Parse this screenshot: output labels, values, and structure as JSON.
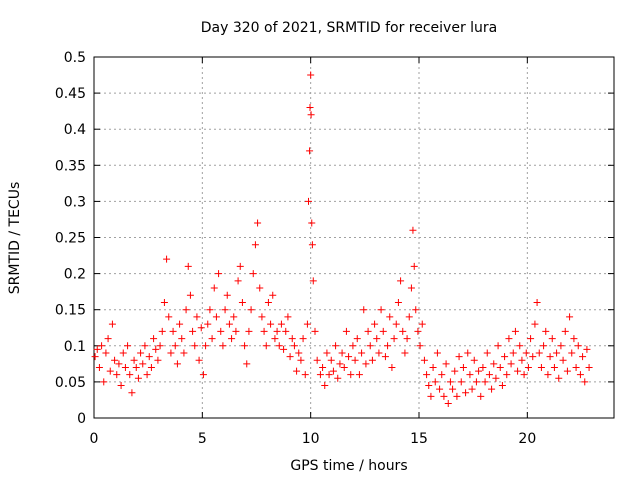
{
  "chart_data": {
    "type": "scatter",
    "title": "Day 320 of 2021, SRMTID for receiver lura",
    "xlabel": "GPS time / hours",
    "ylabel": "SRMTID / TECUs",
    "xlim": [
      0,
      24
    ],
    "ylim": [
      0,
      0.5
    ],
    "x_ticks": [
      0,
      5,
      10,
      15,
      20
    ],
    "x_tick_labels": [
      "0",
      "5",
      "10",
      "15",
      "20"
    ],
    "y_ticks": [
      0,
      0.05,
      0.1,
      0.15,
      0.2,
      0.25,
      0.3,
      0.35,
      0.4,
      0.45,
      0.5
    ],
    "y_tick_labels": [
      "0",
      "0.05",
      "0.1",
      "0.15",
      "0.2",
      "0.25",
      "0.3",
      "0.35",
      "0.4",
      "0.45",
      "0.5"
    ],
    "grid": true,
    "marker": "+",
    "color": "#ff0000",
    "series": [
      {
        "name": "SRMTID",
        "points": [
          [
            0.05,
            0.085
          ],
          [
            0.15,
            0.095
          ],
          [
            0.25,
            0.07
          ],
          [
            0.35,
            0.1
          ],
          [
            0.45,
            0.05
          ],
          [
            0.55,
            0.09
          ],
          [
            0.65,
            0.11
          ],
          [
            0.75,
            0.065
          ],
          [
            0.85,
            0.13
          ],
          [
            0.95,
            0.08
          ],
          [
            1.05,
            0.06
          ],
          [
            1.15,
            0.075
          ],
          [
            1.25,
            0.045
          ],
          [
            1.35,
            0.09
          ],
          [
            1.45,
            0.07
          ],
          [
            1.55,
            0.1
          ],
          [
            1.65,
            0.06
          ],
          [
            1.75,
            0.035
          ],
          [
            1.85,
            0.08
          ],
          [
            1.95,
            0.07
          ],
          [
            2.05,
            0.055
          ],
          [
            2.15,
            0.09
          ],
          [
            2.25,
            0.075
          ],
          [
            2.35,
            0.1
          ],
          [
            2.45,
            0.06
          ],
          [
            2.55,
            0.085
          ],
          [
            2.65,
            0.07
          ],
          [
            2.75,
            0.11
          ],
          [
            2.85,
            0.095
          ],
          [
            2.95,
            0.08
          ],
          [
            3.05,
            0.1
          ],
          [
            3.15,
            0.12
          ],
          [
            3.25,
            0.16
          ],
          [
            3.35,
            0.22
          ],
          [
            3.45,
            0.14
          ],
          [
            3.55,
            0.09
          ],
          [
            3.65,
            0.12
          ],
          [
            3.75,
            0.1
          ],
          [
            3.85,
            0.075
          ],
          [
            3.95,
            0.13
          ],
          [
            4.05,
            0.11
          ],
          [
            4.15,
            0.09
          ],
          [
            4.25,
            0.15
          ],
          [
            4.35,
            0.21
          ],
          [
            4.45,
            0.17
          ],
          [
            4.55,
            0.12
          ],
          [
            4.65,
            0.1
          ],
          [
            4.75,
            0.14
          ],
          [
            4.85,
            0.08
          ],
          [
            4.95,
            0.125
          ],
          [
            5.05,
            0.06
          ],
          [
            5.15,
            0.1
          ],
          [
            5.25,
            0.13
          ],
          [
            5.35,
            0.15
          ],
          [
            5.45,
            0.11
          ],
          [
            5.55,
            0.18
          ],
          [
            5.65,
            0.14
          ],
          [
            5.75,
            0.2
          ],
          [
            5.85,
            0.12
          ],
          [
            5.95,
            0.1
          ],
          [
            6.05,
            0.15
          ],
          [
            6.15,
            0.17
          ],
          [
            6.25,
            0.13
          ],
          [
            6.35,
            0.11
          ],
          [
            6.45,
            0.14
          ],
          [
            6.55,
            0.12
          ],
          [
            6.65,
            0.19
          ],
          [
            6.75,
            0.21
          ],
          [
            6.85,
            0.16
          ],
          [
            6.95,
            0.1
          ],
          [
            7.05,
            0.075
          ],
          [
            7.15,
            0.12
          ],
          [
            7.25,
            0.15
          ],
          [
            7.35,
            0.2
          ],
          [
            7.45,
            0.24
          ],
          [
            7.55,
            0.27
          ],
          [
            7.65,
            0.18
          ],
          [
            7.75,
            0.14
          ],
          [
            7.85,
            0.12
          ],
          [
            7.95,
            0.1
          ],
          [
            8.05,
            0.16
          ],
          [
            8.15,
            0.13
          ],
          [
            8.25,
            0.17
          ],
          [
            8.35,
            0.11
          ],
          [
            8.45,
            0.12
          ],
          [
            8.55,
            0.1
          ],
          [
            8.65,
            0.13
          ],
          [
            8.75,
            0.095
          ],
          [
            8.85,
            0.12
          ],
          [
            8.95,
            0.14
          ],
          [
            9.05,
            0.085
          ],
          [
            9.15,
            0.11
          ],
          [
            9.25,
            0.1
          ],
          [
            9.35,
            0.065
          ],
          [
            9.45,
            0.09
          ],
          [
            9.55,
            0.08
          ],
          [
            9.65,
            0.11
          ],
          [
            9.75,
            0.06
          ],
          [
            9.85,
            0.13
          ],
          [
            9.9,
            0.3
          ],
          [
            9.95,
            0.37
          ],
          [
            9.97,
            0.43
          ],
          [
            10.0,
            0.475
          ],
          [
            10.02,
            0.42
          ],
          [
            10.05,
            0.27
          ],
          [
            10.08,
            0.24
          ],
          [
            10.12,
            0.19
          ],
          [
            10.2,
            0.12
          ],
          [
            10.3,
            0.08
          ],
          [
            10.45,
            0.06
          ],
          [
            10.55,
            0.07
          ],
          [
            10.65,
            0.045
          ],
          [
            10.75,
            0.09
          ],
          [
            10.85,
            0.06
          ],
          [
            10.95,
            0.08
          ],
          [
            11.05,
            0.065
          ],
          [
            11.15,
            0.1
          ],
          [
            11.25,
            0.055
          ],
          [
            11.35,
            0.075
          ],
          [
            11.45,
            0.09
          ],
          [
            11.55,
            0.07
          ],
          [
            11.65,
            0.12
          ],
          [
            11.75,
            0.085
          ],
          [
            11.85,
            0.06
          ],
          [
            11.95,
            0.1
          ],
          [
            12.05,
            0.08
          ],
          [
            12.15,
            0.11
          ],
          [
            12.25,
            0.06
          ],
          [
            12.35,
            0.09
          ],
          [
            12.45,
            0.15
          ],
          [
            12.55,
            0.075
          ],
          [
            12.65,
            0.12
          ],
          [
            12.75,
            0.1
          ],
          [
            12.85,
            0.08
          ],
          [
            12.95,
            0.13
          ],
          [
            13.05,
            0.11
          ],
          [
            13.15,
            0.09
          ],
          [
            13.25,
            0.15
          ],
          [
            13.35,
            0.12
          ],
          [
            13.45,
            0.085
          ],
          [
            13.55,
            0.1
          ],
          [
            13.65,
            0.14
          ],
          [
            13.75,
            0.07
          ],
          [
            13.85,
            0.11
          ],
          [
            13.95,
            0.13
          ],
          [
            14.05,
            0.16
          ],
          [
            14.15,
            0.19
          ],
          [
            14.25,
            0.12
          ],
          [
            14.35,
            0.09
          ],
          [
            14.45,
            0.11
          ],
          [
            14.55,
            0.14
          ],
          [
            14.65,
            0.18
          ],
          [
            14.72,
            0.26
          ],
          [
            14.78,
            0.21
          ],
          [
            14.85,
            0.15
          ],
          [
            14.95,
            0.12
          ],
          [
            15.05,
            0.1
          ],
          [
            15.15,
            0.13
          ],
          [
            15.25,
            0.08
          ],
          [
            15.35,
            0.06
          ],
          [
            15.45,
            0.045
          ],
          [
            15.55,
            0.03
          ],
          [
            15.65,
            0.07
          ],
          [
            15.75,
            0.05
          ],
          [
            15.85,
            0.09
          ],
          [
            15.95,
            0.04
          ],
          [
            16.05,
            0.06
          ],
          [
            16.15,
            0.03
          ],
          [
            16.25,
            0.075
          ],
          [
            16.35,
            0.02
          ],
          [
            16.45,
            0.05
          ],
          [
            16.55,
            0.04
          ],
          [
            16.65,
            0.065
          ],
          [
            16.75,
            0.03
          ],
          [
            16.85,
            0.085
          ],
          [
            16.95,
            0.05
          ],
          [
            17.05,
            0.07
          ],
          [
            17.15,
            0.035
          ],
          [
            17.25,
            0.09
          ],
          [
            17.35,
            0.06
          ],
          [
            17.45,
            0.04
          ],
          [
            17.55,
            0.08
          ],
          [
            17.65,
            0.05
          ],
          [
            17.75,
            0.065
          ],
          [
            17.85,
            0.03
          ],
          [
            17.95,
            0.07
          ],
          [
            18.05,
            0.05
          ],
          [
            18.15,
            0.09
          ],
          [
            18.25,
            0.06
          ],
          [
            18.35,
            0.04
          ],
          [
            18.45,
            0.075
          ],
          [
            18.55,
            0.055
          ],
          [
            18.65,
            0.1
          ],
          [
            18.75,
            0.07
          ],
          [
            18.85,
            0.045
          ],
          [
            18.95,
            0.085
          ],
          [
            19.05,
            0.06
          ],
          [
            19.15,
            0.11
          ],
          [
            19.25,
            0.075
          ],
          [
            19.35,
            0.09
          ],
          [
            19.45,
            0.12
          ],
          [
            19.55,
            0.065
          ],
          [
            19.65,
            0.1
          ],
          [
            19.75,
            0.08
          ],
          [
            19.85,
            0.06
          ],
          [
            19.95,
            0.09
          ],
          [
            20.05,
            0.07
          ],
          [
            20.15,
            0.11
          ],
          [
            20.25,
            0.085
          ],
          [
            20.35,
            0.13
          ],
          [
            20.45,
            0.16
          ],
          [
            20.55,
            0.09
          ],
          [
            20.65,
            0.07
          ],
          [
            20.75,
            0.1
          ],
          [
            20.85,
            0.12
          ],
          [
            20.95,
            0.06
          ],
          [
            21.05,
            0.085
          ],
          [
            21.15,
            0.11
          ],
          [
            21.25,
            0.07
          ],
          [
            21.35,
            0.09
          ],
          [
            21.45,
            0.055
          ],
          [
            21.55,
            0.1
          ],
          [
            21.65,
            0.08
          ],
          [
            21.75,
            0.12
          ],
          [
            21.85,
            0.065
          ],
          [
            21.95,
            0.14
          ],
          [
            22.05,
            0.09
          ],
          [
            22.15,
            0.11
          ],
          [
            22.25,
            0.07
          ],
          [
            22.35,
            0.1
          ],
          [
            22.45,
            0.06
          ],
          [
            22.55,
            0.085
          ],
          [
            22.65,
            0.05
          ],
          [
            22.75,
            0.095
          ],
          [
            22.85,
            0.07
          ]
        ]
      }
    ]
  }
}
